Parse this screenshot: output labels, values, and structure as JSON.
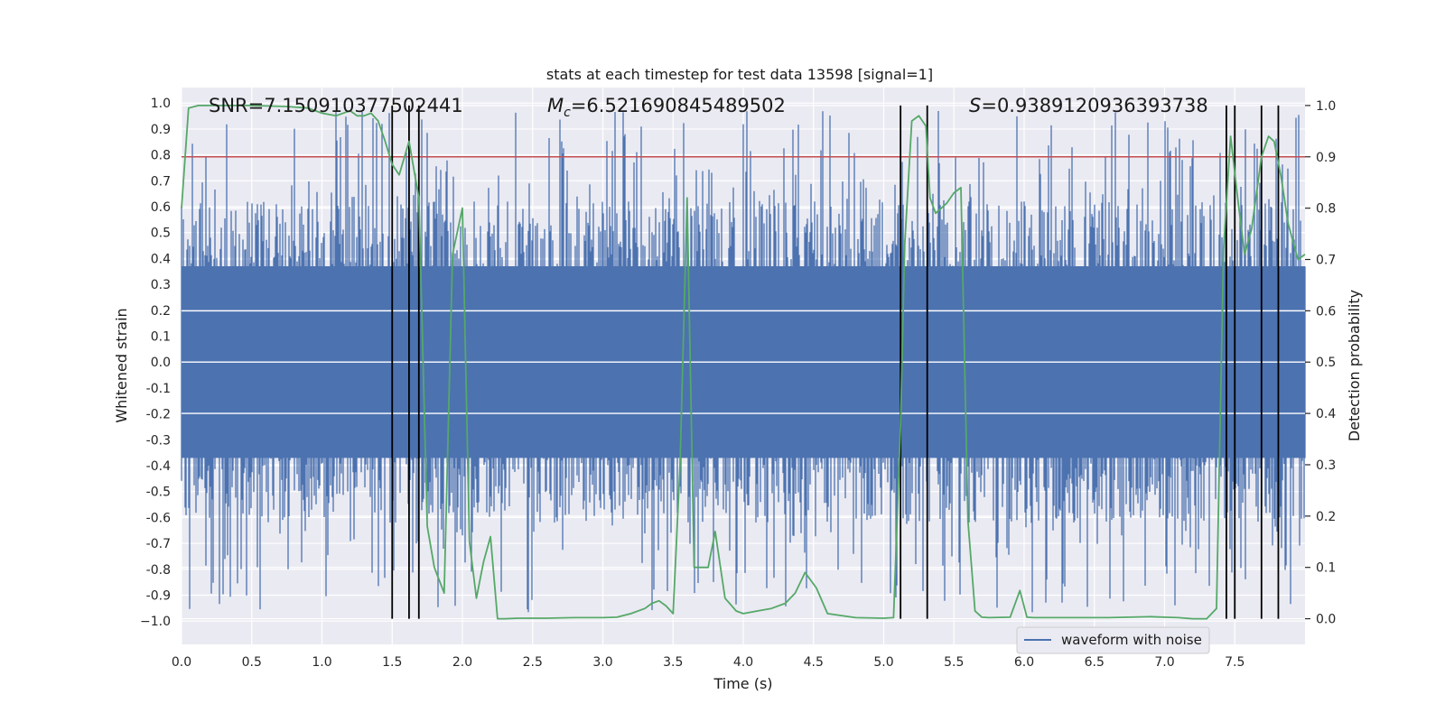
{
  "chart_data": {
    "type": "line",
    "title": "stats at each timestep for test data 13598 [signal=1]",
    "xlabel": "Time (s)",
    "ylabel_left": "Whitened strain",
    "ylabel_right": "Detection probability",
    "xlim": [
      0.0,
      8.0
    ],
    "ylim_left": [
      -1.09,
      1.06
    ],
    "ylim_right": [
      -0.05,
      1.035
    ],
    "x_ticks": [
      0.0,
      0.5,
      1.0,
      1.5,
      2.0,
      2.5,
      3.0,
      3.5,
      4.0,
      4.5,
      5.0,
      5.5,
      6.0,
      6.5,
      7.0,
      7.5
    ],
    "x_tick_labels": [
      "0.0",
      "0.5",
      "1.0",
      "1.5",
      "2.0",
      "2.5",
      "3.0",
      "3.5",
      "4.0",
      "4.5",
      "5.0",
      "5.5",
      "6.0",
      "6.5",
      "7.0",
      "7.5"
    ],
    "y_ticks_left": [
      1.0,
      0.9,
      0.8,
      0.7,
      0.6,
      0.5,
      0.4,
      0.3,
      0.2,
      0.1,
      0.0,
      -0.1,
      -0.2,
      -0.3,
      -0.4,
      -0.5,
      -0.6,
      -0.7,
      -0.8,
      -0.9,
      -1.0
    ],
    "y_tick_labels_left": [
      "1.0",
      "0.9",
      "0.8",
      "0.7",
      "0.6",
      "0.5",
      "0.4",
      "0.3",
      "0.2",
      "0.1",
      "0.0",
      "-0.1",
      "-0.2",
      "-0.3",
      "-0.4",
      "-0.5",
      "-0.6",
      "-0.7",
      "-0.8",
      "-0.9",
      "−1.0"
    ],
    "y_ticks_right": [
      1.0,
      0.9,
      0.8,
      0.7,
      0.6,
      0.5,
      0.4,
      0.3,
      0.2,
      0.1,
      0.0
    ],
    "y_tick_labels_right": [
      "1.0",
      "0.9",
      "0.8",
      "0.7",
      "0.6",
      "0.5",
      "0.4",
      "0.3",
      "0.2",
      "0.1",
      "0.0"
    ],
    "grid": true,
    "annotations": [
      {
        "text": "SNR=7.150910377502441",
        "x": 0.2,
        "y": 1.0
      },
      {
        "text_italic": "M",
        "text_sub": "c",
        "text": "=6.521690845489502",
        "x": 2.6,
        "y": 1.0
      },
      {
        "text_italic": "S",
        "text": "=0.9389120936393738",
        "x": 5.6,
        "y": 1.0
      }
    ],
    "legend": {
      "placement": "lower-right",
      "entries": [
        "waveform with noise"
      ]
    },
    "threshold_line": {
      "y_right": 0.9,
      "color": "#c44e52"
    },
    "vertical_lines": [
      1.5,
      1.62,
      1.69,
      5.12,
      5.31,
      7.44,
      7.5,
      7.69,
      7.81
    ],
    "waveform": {
      "name": "waveform with noise",
      "color": "#4c72b0",
      "duration_s": 8.0,
      "envelope": 0.37,
      "peak_max": 0.97,
      "peak_min": -0.97
    },
    "probability": {
      "color": "#55a868",
      "x": [
        0.0,
        0.05,
        0.12,
        0.25,
        0.5,
        0.75,
        0.9,
        1.0,
        1.1,
        1.2,
        1.25,
        1.3,
        1.35,
        1.4,
        1.45,
        1.5,
        1.55,
        1.62,
        1.69,
        1.75,
        1.8,
        1.87,
        1.93,
        2.0,
        2.05,
        2.1,
        2.15,
        2.2,
        2.25,
        2.3,
        2.4,
        2.6,
        2.8,
        3.0,
        3.1,
        3.2,
        3.3,
        3.35,
        3.4,
        3.45,
        3.5,
        3.55,
        3.6,
        3.65,
        3.7,
        3.75,
        3.8,
        3.87,
        3.95,
        4.0,
        4.1,
        4.2,
        4.3,
        4.37,
        4.44,
        4.52,
        4.6,
        4.8,
        5.0,
        5.07,
        5.12,
        5.15,
        5.2,
        5.25,
        5.3,
        5.33,
        5.37,
        5.45,
        5.5,
        5.55,
        5.6,
        5.65,
        5.7,
        5.75,
        5.9,
        5.97,
        6.02,
        6.07,
        6.15,
        6.3,
        6.6,
        6.9,
        7.0,
        7.1,
        7.2,
        7.3,
        7.37,
        7.42,
        7.47,
        7.52,
        7.57,
        7.62,
        7.69,
        7.74,
        7.78,
        7.83,
        7.88,
        7.95,
        8.0
      ],
      "y": [
        0.8,
        0.995,
        1.0,
        1.0,
        1.0,
        0.998,
        0.995,
        0.985,
        0.98,
        0.99,
        0.98,
        0.98,
        0.985,
        0.97,
        0.93,
        0.885,
        0.865,
        0.93,
        0.82,
        0.18,
        0.1,
        0.05,
        0.71,
        0.8,
        0.15,
        0.04,
        0.11,
        0.16,
        0.0,
        0.0,
        0.001,
        0.001,
        0.002,
        0.002,
        0.003,
        0.01,
        0.02,
        0.03,
        0.035,
        0.025,
        0.01,
        0.3,
        0.82,
        0.1,
        0.1,
        0.1,
        0.17,
        0.04,
        0.015,
        0.01,
        0.015,
        0.02,
        0.03,
        0.05,
        0.09,
        0.06,
        0.01,
        0.002,
        0.001,
        0.002,
        0.38,
        0.73,
        0.97,
        0.98,
        0.96,
        0.82,
        0.79,
        0.81,
        0.83,
        0.84,
        0.19,
        0.015,
        0.003,
        0.002,
        0.003,
        0.055,
        0.003,
        0.002,
        0.002,
        0.002,
        0.002,
        0.004,
        0.003,
        0.002,
        0.0,
        0.0,
        0.02,
        0.72,
        0.94,
        0.82,
        0.71,
        0.76,
        0.9,
        0.94,
        0.93,
        0.86,
        0.77,
        0.7,
        0.71
      ]
    }
  }
}
